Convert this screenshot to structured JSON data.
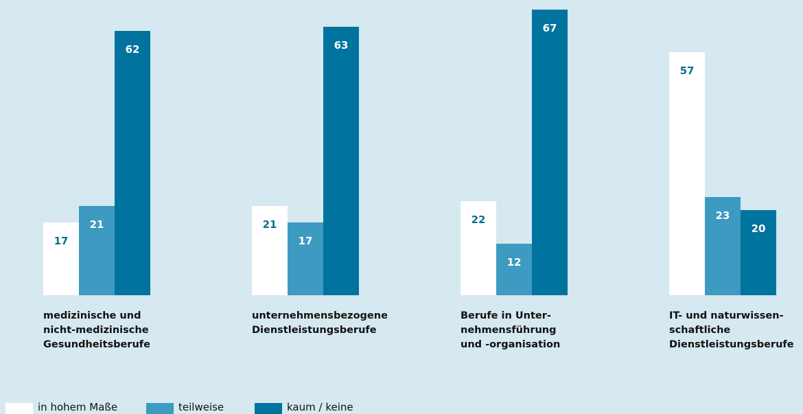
{
  "chart_data": {
    "type": "bar",
    "categories": [
      "medizinische und\nnicht-medizinische\nGesundheitsberufe",
      "unternehmensbezogene\nDienstleistungsberufe",
      "Berufe in Unter-\nnehmensführung\nund -organisation",
      "IT- und naturwissen-\nschaftliche\nDienstleistungsberufe"
    ],
    "series": [
      {
        "name": "in hohem Maße",
        "color": "#ffffff",
        "label_color": "#0e6f8e",
        "values": [
          17,
          21,
          22,
          57
        ]
      },
      {
        "name": "teilweise",
        "color": "#3d9ac0",
        "label_color": "#ffffff",
        "values": [
          21,
          17,
          12,
          23
        ]
      },
      {
        "name": "kaum / keine",
        "color": "#00739e",
        "label_color": "#ffffff",
        "values": [
          62,
          63,
          67,
          20
        ]
      }
    ]
  }
}
